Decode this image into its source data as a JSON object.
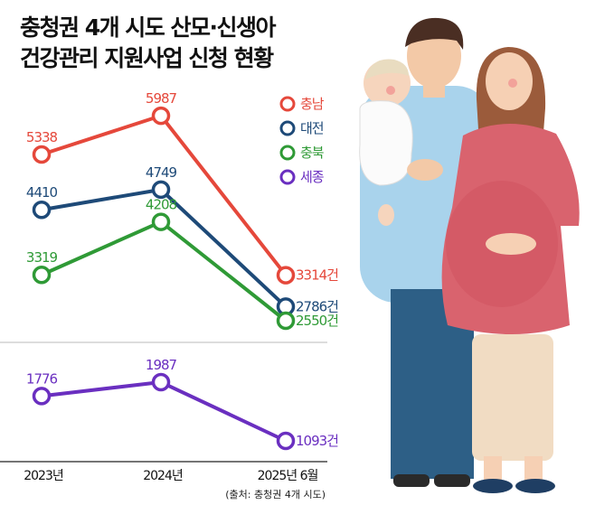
{
  "title": {
    "line1": "충청권 4개 시도 산모·신생아",
    "line2": "건강관리 지원사업 신청 현황"
  },
  "source": "(출처: 충청권 4개 시도)",
  "chart_data": {
    "type": "line",
    "categories": [
      "2023년",
      "2024년",
      "2025년 6월"
    ],
    "unit_suffix": "건",
    "legend_position": "top-right",
    "grid": false,
    "broken_axis": true,
    "series": [
      {
        "name": "충남",
        "color": "#e5483b",
        "values": [
          5338,
          5987,
          3314
        ],
        "labels": [
          "5338",
          "5987",
          "3314건"
        ],
        "panel": "top"
      },
      {
        "name": "대전",
        "color": "#1e4a78",
        "values": [
          4410,
          4749,
          2786
        ],
        "labels": [
          "4410",
          "4749",
          "2786건"
        ],
        "panel": "top"
      },
      {
        "name": "충북",
        "color": "#2f9a36",
        "values": [
          3319,
          4208,
          2550
        ],
        "labels": [
          "3319",
          "4208",
          "2550건"
        ],
        "panel": "top"
      },
      {
        "name": "세종",
        "color": "#6a2fc0",
        "values": [
          1776,
          1987,
          1093
        ],
        "labels": [
          "1776",
          "1987",
          "1093건"
        ],
        "panel": "bottom"
      }
    ]
  }
}
